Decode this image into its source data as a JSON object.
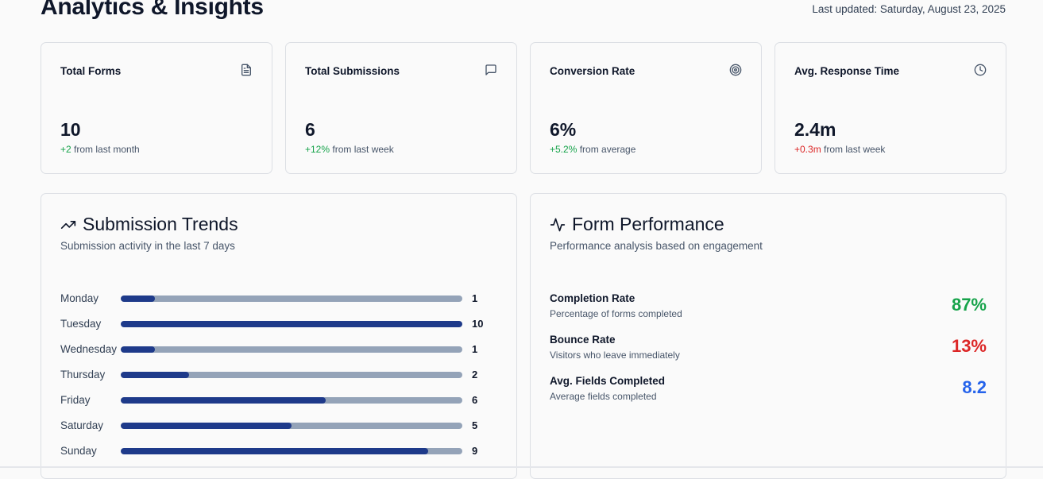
{
  "header": {
    "title": "Analytics & Insights",
    "last_updated": "Last updated: Saturday, August 23, 2025"
  },
  "stats": [
    {
      "label": "Total Forms",
      "value": "10",
      "delta": "+2",
      "delta_text": " from last month",
      "icon": "file-text-icon"
    },
    {
      "label": "Total Submissions",
      "value": "6",
      "delta": "+12%",
      "delta_text": " from last week",
      "icon": "message-square-icon"
    },
    {
      "label": "Conversion Rate",
      "value": "6%",
      "delta": "+5.2%",
      "delta_text": " from average",
      "icon": "target-icon"
    },
    {
      "label": "Avg. Response Time",
      "value": "2.4m",
      "delta": "+0.3m",
      "delta_text": " from last week",
      "icon": "clock-icon"
    }
  ],
  "trends": {
    "title": "Submission Trends",
    "description": "Submission activity in the last 7 days",
    "icon": "trending-up-icon",
    "max": 10,
    "rows": [
      {
        "day": "Monday",
        "count": 1
      },
      {
        "day": "Tuesday",
        "count": 10
      },
      {
        "day": "Wednesday",
        "count": 1
      },
      {
        "day": "Thursday",
        "count": 2
      },
      {
        "day": "Friday",
        "count": 6
      },
      {
        "day": "Saturday",
        "count": 5
      },
      {
        "day": "Sunday",
        "count": 9
      }
    ]
  },
  "performance": {
    "title": "Form Performance",
    "description": "Performance analysis based on engagement",
    "icon": "activity-icon",
    "metrics": [
      {
        "label": "Completion Rate",
        "desc": "Percentage of forms completed",
        "value": "87%",
        "color": "#16a34a"
      },
      {
        "label": "Bounce Rate",
        "desc": "Visitors who leave immediately",
        "value": "13%",
        "color": "#dc2626"
      },
      {
        "label": "Avg. Fields Completed",
        "desc": "Average fields completed",
        "value": "8.2",
        "color": "#2563eb"
      }
    ]
  },
  "colors": {
    "positive": "#16a34a",
    "negative": "#dc2626",
    "bar_fill": "#1e3a8a",
    "bar_track": "#94a3b8"
  }
}
